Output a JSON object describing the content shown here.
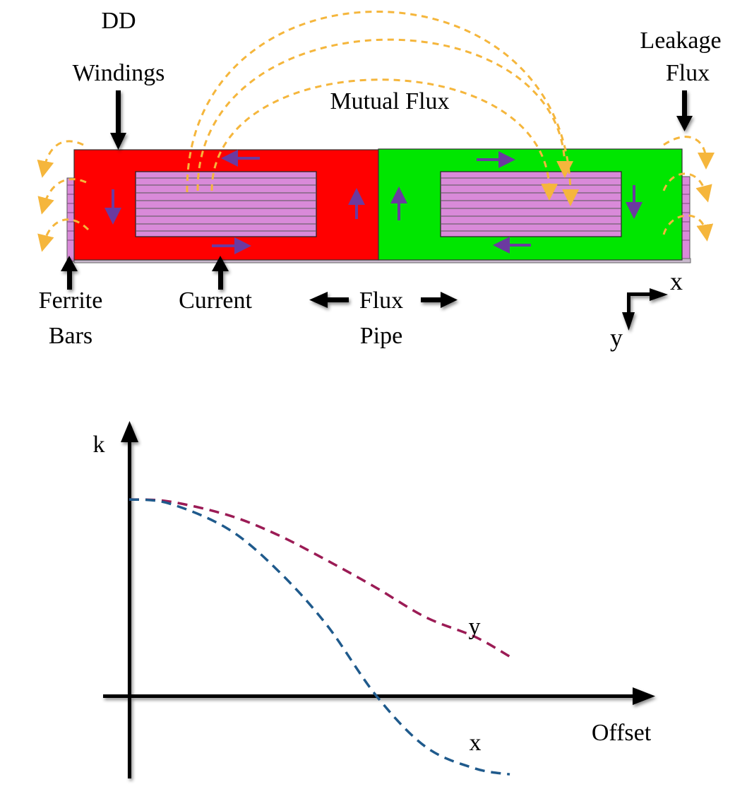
{
  "labels": {
    "dd_windings_1": "DD",
    "dd_windings_2": "Windings",
    "leakage_flux_1": "Leakage",
    "leakage_flux_2": "Flux",
    "mutual_flux": "Mutual Flux",
    "ferrite_bars_1": "Ferrite",
    "ferrite_bars_2": "Bars",
    "current": "Current",
    "flux_pipe_1": "Flux",
    "flux_pipe_2": "Pipe",
    "axis_x": "x",
    "axis_y": "y"
  },
  "colors": {
    "left_coil": "#ff0000",
    "right_coil": "#00e600",
    "ferrite": "#d98ad9",
    "flux_lines": "#f5b63c",
    "current_arrows": "#6b3aa0",
    "curve_y": "#9b1b55",
    "curve_x": "#1f5a8c"
  },
  "chart_data": {
    "type": "line",
    "title": "",
    "xlabel": "Offset",
    "ylabel": "k",
    "series": [
      {
        "name": "y",
        "x": [
          0,
          0.08,
          0.2,
          0.3,
          0.4,
          0.5,
          0.6,
          0.7,
          0.77
        ],
        "values": [
          1.0,
          0.99,
          0.92,
          0.82,
          0.69,
          0.55,
          0.4,
          0.3,
          0.2
        ]
      },
      {
        "name": "x",
        "x": [
          0,
          0.08,
          0.2,
          0.3,
          0.4,
          0.5,
          0.6,
          0.7,
          0.77
        ],
        "values": [
          1.0,
          0.98,
          0.85,
          0.64,
          0.36,
          0.0,
          -0.26,
          -0.37,
          -0.4
        ]
      }
    ]
  }
}
